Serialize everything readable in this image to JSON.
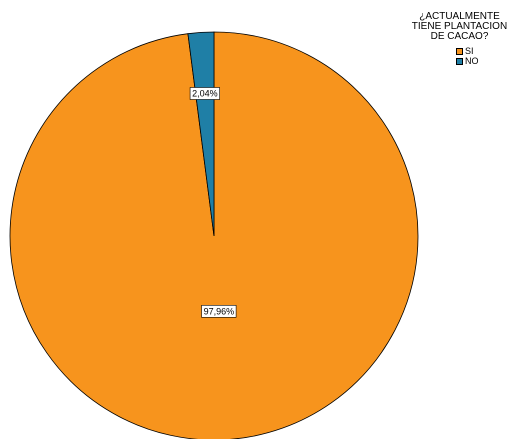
{
  "chart_data": {
    "type": "pie",
    "legend_title": "¿ACTUALMENTE TIENE PLANTACION DE CACAO?",
    "legend_position": "top-right",
    "start_angle_deg": 0,
    "direction": "clockwise",
    "slices": [
      {
        "label": "SI",
        "value": 97.96,
        "data_label": "97,96%",
        "color": "#f7941d"
      },
      {
        "label": "NO",
        "value": 2.04,
        "data_label": "2,04%",
        "color": "#1f7fa6"
      }
    ],
    "stroke_color": "#000000"
  }
}
